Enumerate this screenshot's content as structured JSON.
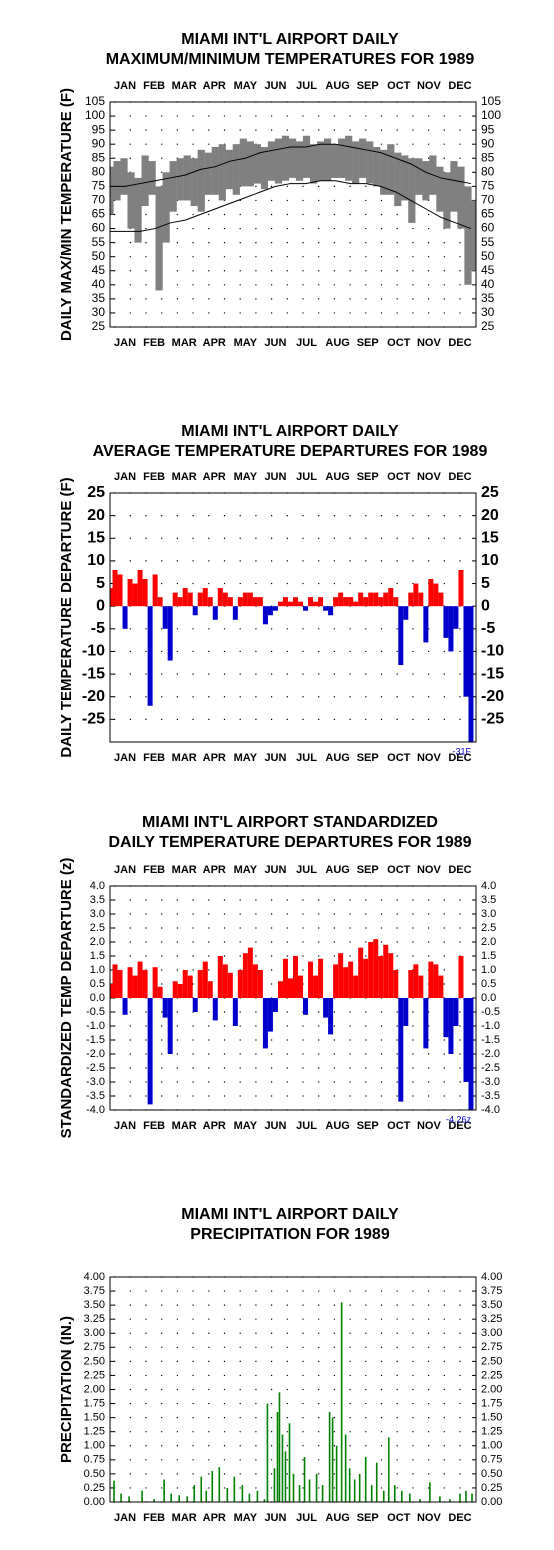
{
  "chart_data": [
    {
      "type": "range",
      "title": [
        "MIAMI INT'L AIRPORT DAILY",
        "MAXIMUM/MINIMUM TEMPERATURES FOR 1989"
      ],
      "y_label": "DAILY MAX/MIN TEMPERATURE (F)",
      "top_month_labels": true,
      "xlim": [
        1,
        366
      ],
      "xticks": [
        {
          "value": 16,
          "label": "JAN"
        },
        {
          "value": 45,
          "label": "FEB"
        },
        {
          "value": 75,
          "label": "MAR"
        },
        {
          "value": 105,
          "label": "APR"
        },
        {
          "value": 136,
          "label": "MAY"
        },
        {
          "value": 166,
          "label": "JUN"
        },
        {
          "value": 197,
          "label": "JUL"
        },
        {
          "value": 228,
          "label": "AUG"
        },
        {
          "value": 258,
          "label": "SEP"
        },
        {
          "value": 289,
          "label": "OCT"
        },
        {
          "value": 319,
          "label": "NOV"
        },
        {
          "value": 350,
          "label": "DEC"
        }
      ],
      "ylim": [
        25,
        105
      ],
      "yticks": [
        25,
        30,
        35,
        40,
        45,
        50,
        55,
        60,
        65,
        70,
        75,
        80,
        85,
        90,
        95,
        100,
        105
      ],
      "grid": true,
      "range": {
        "color": "#808080",
        "x": [
          1,
          8,
          15,
          22,
          29,
          36,
          43,
          50,
          57,
          64,
          71,
          78,
          85,
          92,
          99,
          106,
          113,
          120,
          127,
          134,
          141,
          148,
          155,
          162,
          169,
          176,
          183,
          190,
          197,
          204,
          211,
          218,
          225,
          232,
          239,
          246,
          253,
          260,
          267,
          274,
          281,
          288,
          295,
          302,
          309,
          316,
          323,
          330,
          337,
          344,
          351,
          358,
          365
        ],
        "high": [
          82,
          84,
          85,
          80,
          78,
          86,
          84,
          75,
          80,
          84,
          85,
          86,
          85,
          88,
          87,
          89,
          90,
          88,
          90,
          92,
          91,
          90,
          89,
          91,
          92,
          93,
          92,
          91,
          93,
          90,
          91,
          92,
          90,
          92,
          93,
          91,
          92,
          91,
          89,
          88,
          90,
          87,
          86,
          85,
          85,
          84,
          86,
          82,
          80,
          84,
          82,
          75,
          70
        ],
        "low": [
          65,
          70,
          72,
          60,
          55,
          68,
          72,
          38,
          55,
          66,
          70,
          70,
          68,
          66,
          72,
          72,
          70,
          74,
          72,
          75,
          75,
          76,
          74,
          77,
          76,
          77,
          78,
          77,
          78,
          76,
          77,
          77,
          78,
          78,
          77,
          76,
          78,
          76,
          75,
          72,
          72,
          68,
          70,
          62,
          72,
          70,
          72,
          66,
          60,
          66,
          60,
          40,
          45
        ]
      },
      "normals": {
        "color": "#000000",
        "x": [
          1,
          16,
          31,
          46,
          61,
          76,
          91,
          106,
          121,
          136,
          151,
          166,
          181,
          196,
          211,
          226,
          241,
          256,
          271,
          286,
          301,
          316,
          331,
          346,
          361
        ],
        "high": [
          75,
          75,
          76,
          77,
          78,
          79,
          81,
          82,
          84,
          85,
          87,
          88,
          89,
          89,
          90,
          90,
          89,
          88,
          87,
          85,
          83,
          80,
          78,
          77,
          76
        ],
        "low": [
          59,
          59,
          59,
          60,
          62,
          63,
          65,
          67,
          69,
          71,
          73,
          75,
          76,
          76,
          77,
          77,
          76,
          76,
          75,
          73,
          70,
          67,
          64,
          62,
          60
        ]
      }
    },
    {
      "type": "bar",
      "title": [
        "MIAMI INT'L AIRPORT DAILY",
        "AVERAGE TEMPERATURE DEPARTURES FOR 1989"
      ],
      "y_label": "DAILY TEMPERATURE DEPARTURE (F)",
      "top_month_labels": true,
      "xlim": [
        1,
        366
      ],
      "xticks": [
        {
          "value": 16,
          "label": "JAN"
        },
        {
          "value": 45,
          "label": "FEB"
        },
        {
          "value": 75,
          "label": "MAR"
        },
        {
          "value": 105,
          "label": "APR"
        },
        {
          "value": 136,
          "label": "MAY"
        },
        {
          "value": 166,
          "label": "JUN"
        },
        {
          "value": 197,
          "label": "JUL"
        },
        {
          "value": 228,
          "label": "AUG"
        },
        {
          "value": 258,
          "label": "SEP"
        },
        {
          "value": 289,
          "label": "OCT"
        },
        {
          "value": 319,
          "label": "NOV"
        },
        {
          "value": 350,
          "label": "DEC"
        }
      ],
      "ylim": [
        -30,
        25
      ],
      "yticks": [
        -25,
        -20,
        -15,
        -10,
        -5,
        0,
        5,
        10,
        15,
        20,
        25
      ],
      "grid": true,
      "positive_color": "#ff0000",
      "negative_color": "#0000cc",
      "annotation": "-31F",
      "x": [
        1,
        6,
        11,
        16,
        21,
        26,
        31,
        36,
        41,
        46,
        51,
        56,
        61,
        66,
        71,
        76,
        81,
        86,
        91,
        96,
        101,
        106,
        111,
        116,
        121,
        126,
        131,
        136,
        141,
        146,
        151,
        156,
        161,
        166,
        171,
        176,
        181,
        186,
        191,
        196,
        201,
        206,
        211,
        216,
        221,
        226,
        231,
        236,
        241,
        246,
        251,
        256,
        261,
        266,
        271,
        276,
        281,
        286,
        291,
        296,
        301,
        306,
        311,
        316,
        321,
        326,
        331,
        336,
        341,
        346,
        351,
        356,
        361
      ],
      "values": [
        4,
        8,
        7,
        -5,
        6,
        5,
        8,
        6,
        -22,
        7,
        2,
        -5,
        -12,
        3,
        2,
        4,
        3,
        -2,
        3,
        4,
        2,
        -3,
        4,
        3,
        2,
        -3,
        2,
        3,
        3,
        2,
        2,
        -4,
        -2,
        -1,
        1,
        2,
        1,
        2,
        1,
        -1,
        2,
        1,
        2,
        -1,
        -2,
        2,
        3,
        2,
        2,
        1,
        3,
        2,
        3,
        3,
        2,
        3,
        4,
        2,
        -13,
        -3,
        3,
        5,
        3,
        -8,
        6,
        5,
        3,
        -7,
        -10,
        -5,
        8,
        -20,
        -31
      ]
    },
    {
      "type": "bar",
      "title": [
        "MIAMI INT'L AIRPORT STANDARDIZED",
        "DAILY TEMPERATURE DEPARTURES FOR 1989"
      ],
      "y_label": "STANDARDIZED TEMP DEPARTURE (z)",
      "top_month_labels": true,
      "xlim": [
        1,
        366
      ],
      "xticks": [
        {
          "value": 16,
          "label": "JAN"
        },
        {
          "value": 45,
          "label": "FEB"
        },
        {
          "value": 75,
          "label": "MAR"
        },
        {
          "value": 105,
          "label": "APR"
        },
        {
          "value": 136,
          "label": "MAY"
        },
        {
          "value": 166,
          "label": "JUN"
        },
        {
          "value": 197,
          "label": "JUL"
        },
        {
          "value": 228,
          "label": "AUG"
        },
        {
          "value": 258,
          "label": "SEP"
        },
        {
          "value": 289,
          "label": "OCT"
        },
        {
          "value": 319,
          "label": "NOV"
        },
        {
          "value": 350,
          "label": "DEC"
        }
      ],
      "ylim": [
        -4,
        4
      ],
      "yticks": [
        {
          "value": -4,
          "label": "-4.0"
        },
        -3.5,
        {
          "value": -3,
          "label": "-3.0"
        },
        -2.5,
        {
          "value": -2,
          "label": "-2.0"
        },
        -1.5,
        {
          "value": -1,
          "label": "-1.0"
        },
        -0.5,
        {
          "value": 0,
          "label": "0.0"
        },
        0.5,
        {
          "value": 1,
          "label": "1.0"
        },
        1.5,
        {
          "value": 2,
          "label": "2.0"
        },
        2.5,
        {
          "value": 3,
          "label": "3.0"
        },
        3.5,
        {
          "value": 4,
          "label": "4.0"
        }
      ],
      "grid": true,
      "positive_color": "#ff0000",
      "negative_color": "#0000cc",
      "annotation": "-4.26z",
      "x": [
        1,
        6,
        11,
        16,
        21,
        26,
        31,
        36,
        41,
        46,
        51,
        56,
        61,
        66,
        71,
        76,
        81,
        86,
        91,
        96,
        101,
        106,
        111,
        116,
        121,
        126,
        131,
        136,
        141,
        146,
        151,
        156,
        161,
        166,
        171,
        176,
        181,
        186,
        191,
        196,
        201,
        206,
        211,
        216,
        221,
        226,
        231,
        236,
        241,
        246,
        251,
        256,
        261,
        266,
        271,
        276,
        281,
        286,
        291,
        296,
        301,
        306,
        311,
        316,
        321,
        326,
        331,
        336,
        341,
        346,
        351,
        356,
        361
      ],
      "values": [
        0.5,
        1.2,
        1.0,
        -0.6,
        1.1,
        0.8,
        1.3,
        1.0,
        -3.8,
        1.1,
        0.4,
        -0.7,
        -2.0,
        0.6,
        0.5,
        1.0,
        0.8,
        -0.5,
        1.0,
        1.3,
        0.6,
        -0.8,
        1.5,
        1.2,
        0.9,
        -1.0,
        1.0,
        1.6,
        1.8,
        1.2,
        1.0,
        -1.8,
        -1.2,
        -0.5,
        0.6,
        1.4,
        0.7,
        1.5,
        0.8,
        -0.6,
        1.3,
        0.8,
        1.4,
        -0.7,
        -1.3,
        1.2,
        1.6,
        1.1,
        1.3,
        0.8,
        1.8,
        1.4,
        2.0,
        2.1,
        1.5,
        1.9,
        1.6,
        1.0,
        -3.7,
        -1.0,
        1.0,
        1.2,
        0.8,
        -1.8,
        1.3,
        1.2,
        0.8,
        -1.4,
        -2.0,
        -1.0,
        1.5,
        -3.0,
        -4.26
      ]
    },
    {
      "type": "bar",
      "title": [
        "MIAMI INT'L AIRPORT DAILY",
        "PRECIPITATION FOR 1989"
      ],
      "y_label": "PRECIPITATION (IN.)",
      "top_month_labels": false,
      "xlim": [
        1,
        366
      ],
      "xticks": [
        {
          "value": 16,
          "label": "JAN"
        },
        {
          "value": 45,
          "label": "FEB"
        },
        {
          "value": 75,
          "label": "MAR"
        },
        {
          "value": 105,
          "label": "APR"
        },
        {
          "value": 136,
          "label": "MAY"
        },
        {
          "value": 166,
          "label": "JUN"
        },
        {
          "value": 197,
          "label": "JUL"
        },
        {
          "value": 228,
          "label": "AUG"
        },
        {
          "value": 258,
          "label": "SEP"
        },
        {
          "value": 289,
          "label": "OCT"
        },
        {
          "value": 319,
          "label": "NOV"
        },
        {
          "value": 350,
          "label": "DEC"
        }
      ],
      "ylim": [
        0,
        4
      ],
      "yticks": [
        {
          "value": 0,
          "label": "0.00"
        },
        0.25,
        {
          "value": 0.5,
          "label": "0.50"
        },
        0.75,
        {
          "value": 1,
          "label": "1.00"
        },
        1.25,
        {
          "value": 1.5,
          "label": "1.50"
        },
        1.75,
        {
          "value": 2,
          "label": "2.00"
        },
        2.25,
        {
          "value": 2.5,
          "label": "2.50"
        },
        2.75,
        {
          "value": 3,
          "label": "3.00"
        },
        3.25,
        {
          "value": 3.5,
          "label": "3.50"
        },
        3.75,
        {
          "value": 4,
          "label": "4.00"
        }
      ],
      "grid": true,
      "color": "#008000",
      "x": [
        5,
        12,
        20,
        33,
        45,
        55,
        62,
        70,
        78,
        85,
        92,
        97,
        103,
        110,
        118,
        125,
        133,
        140,
        148,
        155,
        158,
        165,
        168,
        170,
        173,
        176,
        180,
        184,
        190,
        195,
        200,
        207,
        213,
        220,
        223,
        227,
        232,
        236,
        240,
        245,
        250,
        256,
        262,
        267,
        274,
        279,
        285,
        292,
        300,
        310,
        320,
        330,
        340,
        350,
        356,
        362
      ],
      "values": [
        0.38,
        0.15,
        0.1,
        0.2,
        0.05,
        0.4,
        0.15,
        0.12,
        0.1,
        0.3,
        0.45,
        0.2,
        0.55,
        0.62,
        0.25,
        0.45,
        0.3,
        0.15,
        0.2,
        0.05,
        1.75,
        0.6,
        1.6,
        1.95,
        1.2,
        0.9,
        1.4,
        0.5,
        0.3,
        0.8,
        0.4,
        0.5,
        0.3,
        1.6,
        1.5,
        1.0,
        3.55,
        1.2,
        0.6,
        0.4,
        0.5,
        0.8,
        0.3,
        0.7,
        0.2,
        1.15,
        0.3,
        0.2,
        0.15,
        0.05,
        0.35,
        0.1,
        0.05,
        0.15,
        0.2,
        0.15
      ]
    }
  ]
}
